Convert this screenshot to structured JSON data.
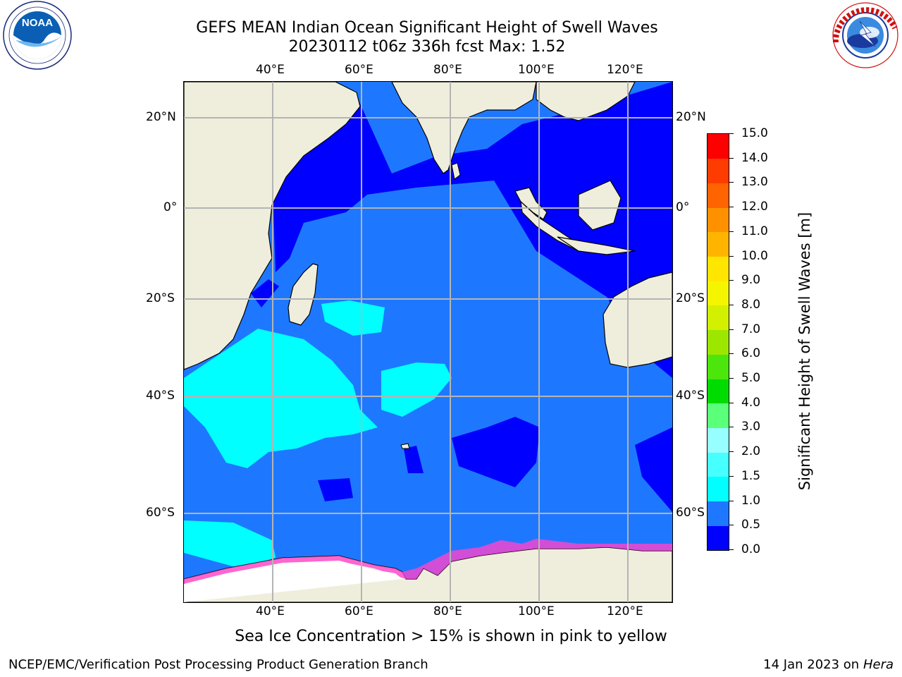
{
  "header": {
    "title_line1": "GEFS MEAN Indian Ocean Significant Height of Swell Waves",
    "title_line2": "20230112 t06z 336h fcst   Max: 1.52"
  },
  "logos": {
    "left": {
      "icon": "noaa-logo",
      "text": "NOAA",
      "ring_text": "NATIONAL OCEANIC AND ATMOSPHERIC ADMINISTRATION · U.S. DEPARTMENT OF COMMERCE"
    },
    "right": {
      "icon": "nws-logo",
      "ring_text": "NATIONAL WEATHER SERVICE"
    }
  },
  "map": {
    "region": "Indian Ocean",
    "lon_range": [
      20,
      130
    ],
    "lat_range": [
      -74,
      28
    ],
    "lon_ticks": [
      "40°E",
      "60°E",
      "80°E",
      "100°E",
      "120°E"
    ],
    "lat_ticks": [
      "20°N",
      "0°",
      "20°S",
      "40°S",
      "60°S"
    ],
    "max_value": 1.52,
    "colors": {
      "ocean_low": "#0000ff",
      "ocean_mid": "#1e78ff",
      "ocean_high": "#00ffff",
      "land": "#efeedd",
      "gridline": "#b4b4b4",
      "sea_ice": "#ff44cc"
    }
  },
  "colorbar": {
    "title": "Significant Height of Swell Waves [m]",
    "labels": [
      "0.0",
      "0.5",
      "1.0",
      "1.5",
      "2.0",
      "3.0",
      "4.0",
      "5.0",
      "6.0",
      "7.0",
      "8.0",
      "9.0",
      "10.0",
      "11.0",
      "12.0",
      "13.0",
      "14.0",
      "15.0"
    ],
    "colors": [
      "#0000ff",
      "#1e78ff",
      "#00ffff",
      "#46ffff",
      "#97ffff",
      "#5aff7a",
      "#00dc00",
      "#4ce60d",
      "#9de600",
      "#d2f000",
      "#f5f500",
      "#ffe600",
      "#ffb400",
      "#ff9100",
      "#ff6400",
      "#ff3c00",
      "#ff0000"
    ]
  },
  "note": "Sea Ice Concentration > 15% is shown in pink to yellow",
  "footer": {
    "left": "NCEP/EMC/Verification Post Processing Product Generation Branch",
    "right_prefix": "14 Jan 2023 on ",
    "right_machine": "Hera"
  }
}
